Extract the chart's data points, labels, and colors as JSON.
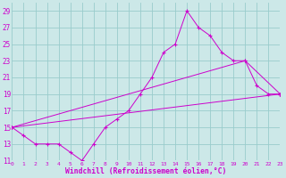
{
  "xlabel": "Windchill (Refroidissement éolien,°C)",
  "bg_color": "#cce8e8",
  "grid_color": "#99cccc",
  "line_color": "#cc00cc",
  "xlim": [
    0,
    23
  ],
  "ylim": [
    11,
    30
  ],
  "xticks": [
    0,
    1,
    2,
    3,
    4,
    5,
    6,
    7,
    8,
    9,
    10,
    11,
    12,
    13,
    14,
    15,
    16,
    17,
    18,
    19,
    20,
    21,
    22,
    23
  ],
  "yticks": [
    11,
    13,
    15,
    17,
    19,
    21,
    23,
    25,
    27,
    29
  ],
  "line1_x": [
    0,
    1,
    2,
    3,
    4,
    5,
    6,
    7,
    8,
    9,
    10,
    11,
    12,
    13,
    14,
    15,
    16,
    17,
    18,
    19,
    20,
    21,
    22,
    23
  ],
  "line1_y": [
    15,
    14,
    13,
    13,
    13,
    12,
    11,
    13,
    15,
    16,
    17,
    19,
    21,
    24,
    25,
    29,
    27,
    26,
    24,
    23,
    23,
    20,
    19,
    19
  ],
  "line2_x": [
    0,
    23
  ],
  "line2_y": [
    15,
    19
  ],
  "line3_x": [
    0,
    20,
    23
  ],
  "line3_y": [
    15,
    23,
    19
  ]
}
